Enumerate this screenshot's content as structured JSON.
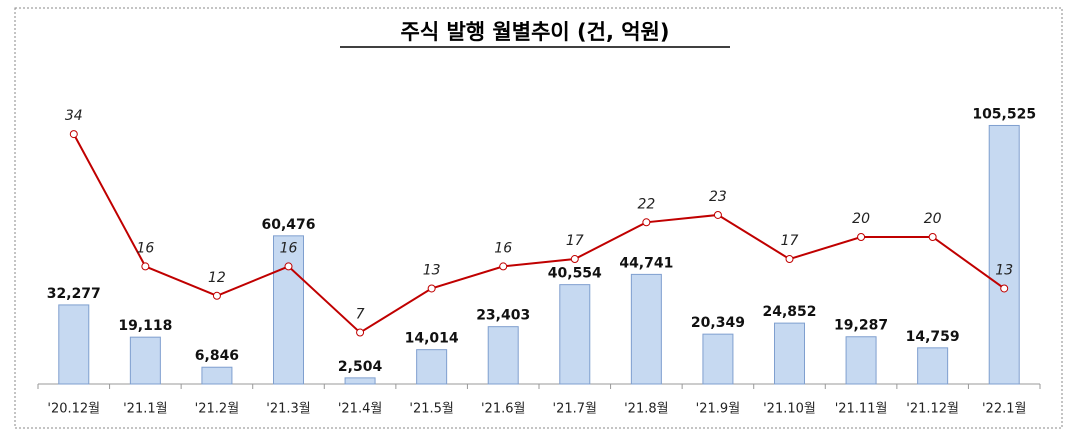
{
  "chart_data": {
    "type": "bar",
    "title": "주식 발행 월별추이 (건, 억원)",
    "categories": [
      "'20.12월",
      "'21.1월",
      "'21.2월",
      "'21.3월",
      "'21.4월",
      "'21.5월",
      "'21.6월",
      "'21.7월",
      "'21.8월",
      "'21.9월",
      "'21.10월",
      "'21.11월",
      "'21.12월",
      "'22.1월"
    ],
    "ylim": [
      0,
      120000
    ],
    "y2lim": [
      0,
      40
    ],
    "series": [
      {
        "type": "bar",
        "color": "#c6d9f1",
        "values": [
          32277,
          19118,
          6846,
          60476,
          2504,
          14014,
          23403,
          40554,
          44741,
          20349,
          24852,
          19287,
          14759,
          105525
        ],
        "value_labels": [
          "32,277",
          "19,118",
          "6,846",
          "60,476",
          "2,504",
          "14,014",
          "23,403",
          "40,554",
          "44,741",
          "20,349",
          "24,852",
          "19,287",
          "14,759",
          "105,525"
        ]
      },
      {
        "type": "line",
        "color": "#c00000",
        "axis": "y2",
        "values": [
          34,
          16,
          12,
          16,
          7,
          13,
          16,
          17,
          22,
          23,
          17,
          20,
          20,
          13
        ]
      }
    ]
  }
}
